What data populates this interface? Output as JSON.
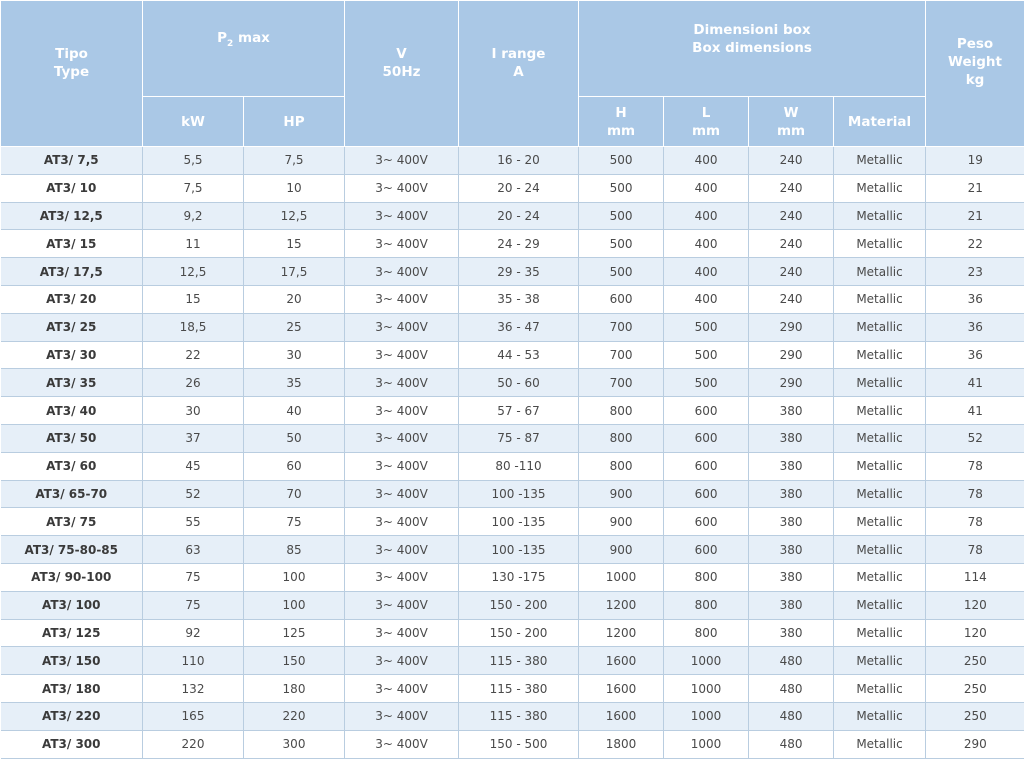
{
  "header": {
    "tipo": "Tipo",
    "type": "Type",
    "p2_main": "P",
    "p2_sub": "2",
    "p2_suffix": " max",
    "kw": "kW",
    "hp": "HP",
    "v": "V",
    "hz": "50Hz",
    "irange": "I range",
    "irange_unit": "A",
    "dim_it": "Dimensioni box",
    "dim_en": "Box dimensions",
    "h": "H",
    "l": "L",
    "w": "W",
    "mm": "mm",
    "material": "Material",
    "peso": "Peso",
    "weight": "Weight",
    "kg": "kg"
  },
  "rows": [
    {
      "type": "AT3/ 7,5",
      "kw": "5,5",
      "hp": "7,5",
      "v": "3~ 400V",
      "i": "16 - 20",
      "h": "500",
      "l": "400",
      "w": "240",
      "mat": "Metallic",
      "kg": "19"
    },
    {
      "type": "AT3/ 10",
      "kw": "7,5",
      "hp": "10",
      "v": "3~ 400V",
      "i": "20 - 24",
      "h": "500",
      "l": "400",
      "w": "240",
      "mat": "Metallic",
      "kg": "21"
    },
    {
      "type": "AT3/ 12,5",
      "kw": "9,2",
      "hp": "12,5",
      "v": "3~ 400V",
      "i": "20 - 24",
      "h": "500",
      "l": "400",
      "w": "240",
      "mat": "Metallic",
      "kg": "21"
    },
    {
      "type": "AT3/ 15",
      "kw": "11",
      "hp": "15",
      "v": "3~ 400V",
      "i": "24 - 29",
      "h": "500",
      "l": "400",
      "w": "240",
      "mat": "Metallic",
      "kg": "22"
    },
    {
      "type": "AT3/ 17,5",
      "kw": "12,5",
      "hp": "17,5",
      "v": "3~ 400V",
      "i": "29 - 35",
      "h": "500",
      "l": "400",
      "w": "240",
      "mat": "Metallic",
      "kg": "23"
    },
    {
      "type": "AT3/ 20",
      "kw": "15",
      "hp": "20",
      "v": "3~ 400V",
      "i": "35 - 38",
      "h": "600",
      "l": "400",
      "w": "240",
      "mat": "Metallic",
      "kg": "36"
    },
    {
      "type": "AT3/ 25",
      "kw": "18,5",
      "hp": "25",
      "v": "3~ 400V",
      "i": "36 - 47",
      "h": "700",
      "l": "500",
      "w": "290",
      "mat": "Metallic",
      "kg": "36"
    },
    {
      "type": "AT3/ 30",
      "kw": "22",
      "hp": "30",
      "v": "3~ 400V",
      "i": "44 - 53",
      "h": "700",
      "l": "500",
      "w": "290",
      "mat": "Metallic",
      "kg": "36"
    },
    {
      "type": "AT3/ 35",
      "kw": "26",
      "hp": "35",
      "v": "3~ 400V",
      "i": "50 - 60",
      "h": "700",
      "l": "500",
      "w": "290",
      "mat": "Metallic",
      "kg": "41"
    },
    {
      "type": "AT3/ 40",
      "kw": "30",
      "hp": "40",
      "v": "3~ 400V",
      "i": "57 - 67",
      "h": "800",
      "l": "600",
      "w": "380",
      "mat": "Metallic",
      "kg": "41"
    },
    {
      "type": "AT3/ 50",
      "kw": "37",
      "hp": "50",
      "v": "3~ 400V",
      "i": "75 - 87",
      "h": "800",
      "l": "600",
      "w": "380",
      "mat": "Metallic",
      "kg": "52"
    },
    {
      "type": "AT3/ 60",
      "kw": "45",
      "hp": "60",
      "v": "3~ 400V",
      "i": "80 -110",
      "h": "800",
      "l": "600",
      "w": "380",
      "mat": "Metallic",
      "kg": "78"
    },
    {
      "type": "AT3/ 65-70",
      "kw": "52",
      "hp": "70",
      "v": "3~ 400V",
      "i": "100 -135",
      "h": "900",
      "l": "600",
      "w": "380",
      "mat": "Metallic",
      "kg": "78"
    },
    {
      "type": "AT3/ 75",
      "kw": "55",
      "hp": "75",
      "v": "3~ 400V",
      "i": "100 -135",
      "h": "900",
      "l": "600",
      "w": "380",
      "mat": "Metallic",
      "kg": "78"
    },
    {
      "type": "AT3/ 75-80-85",
      "kw": "63",
      "hp": "85",
      "v": "3~ 400V",
      "i": "100 -135",
      "h": "900",
      "l": "600",
      "w": "380",
      "mat": "Metallic",
      "kg": "78"
    },
    {
      "type": "AT3/ 90-100",
      "kw": "75",
      "hp": "100",
      "v": "3~ 400V",
      "i": "130 -175",
      "h": "1000",
      "l": "800",
      "w": "380",
      "mat": "Metallic",
      "kg": "114"
    },
    {
      "type": "AT3/ 100",
      "kw": "75",
      "hp": "100",
      "v": "3~ 400V",
      "i": "150 - 200",
      "h": "1200",
      "l": "800",
      "w": "380",
      "mat": "Metallic",
      "kg": "120"
    },
    {
      "type": "AT3/ 125",
      "kw": "92",
      "hp": "125",
      "v": "3~ 400V",
      "i": "150 - 200",
      "h": "1200",
      "l": "800",
      "w": "380",
      "mat": "Metallic",
      "kg": "120"
    },
    {
      "type": "AT3/ 150",
      "kw": "110",
      "hp": "150",
      "v": "3~ 400V",
      "i": "115 - 380",
      "h": "1600",
      "l": "1000",
      "w": "480",
      "mat": "Metallic",
      "kg": "250"
    },
    {
      "type": "AT3/ 180",
      "kw": "132",
      "hp": "180",
      "v": "3~ 400V",
      "i": "115 - 380",
      "h": "1600",
      "l": "1000",
      "w": "480",
      "mat": "Metallic",
      "kg": "250"
    },
    {
      "type": "AT3/ 220",
      "kw": "165",
      "hp": "220",
      "v": "3~ 400V",
      "i": "115 - 380",
      "h": "1600",
      "l": "1000",
      "w": "480",
      "mat": "Metallic",
      "kg": "250"
    },
    {
      "type": "AT3/ 300",
      "kw": "220",
      "hp": "300",
      "v": "3~ 400V",
      "i": "150 - 500",
      "h": "1800",
      "l": "1000",
      "w": "480",
      "mat": "Metallic",
      "kg": "290"
    }
  ]
}
